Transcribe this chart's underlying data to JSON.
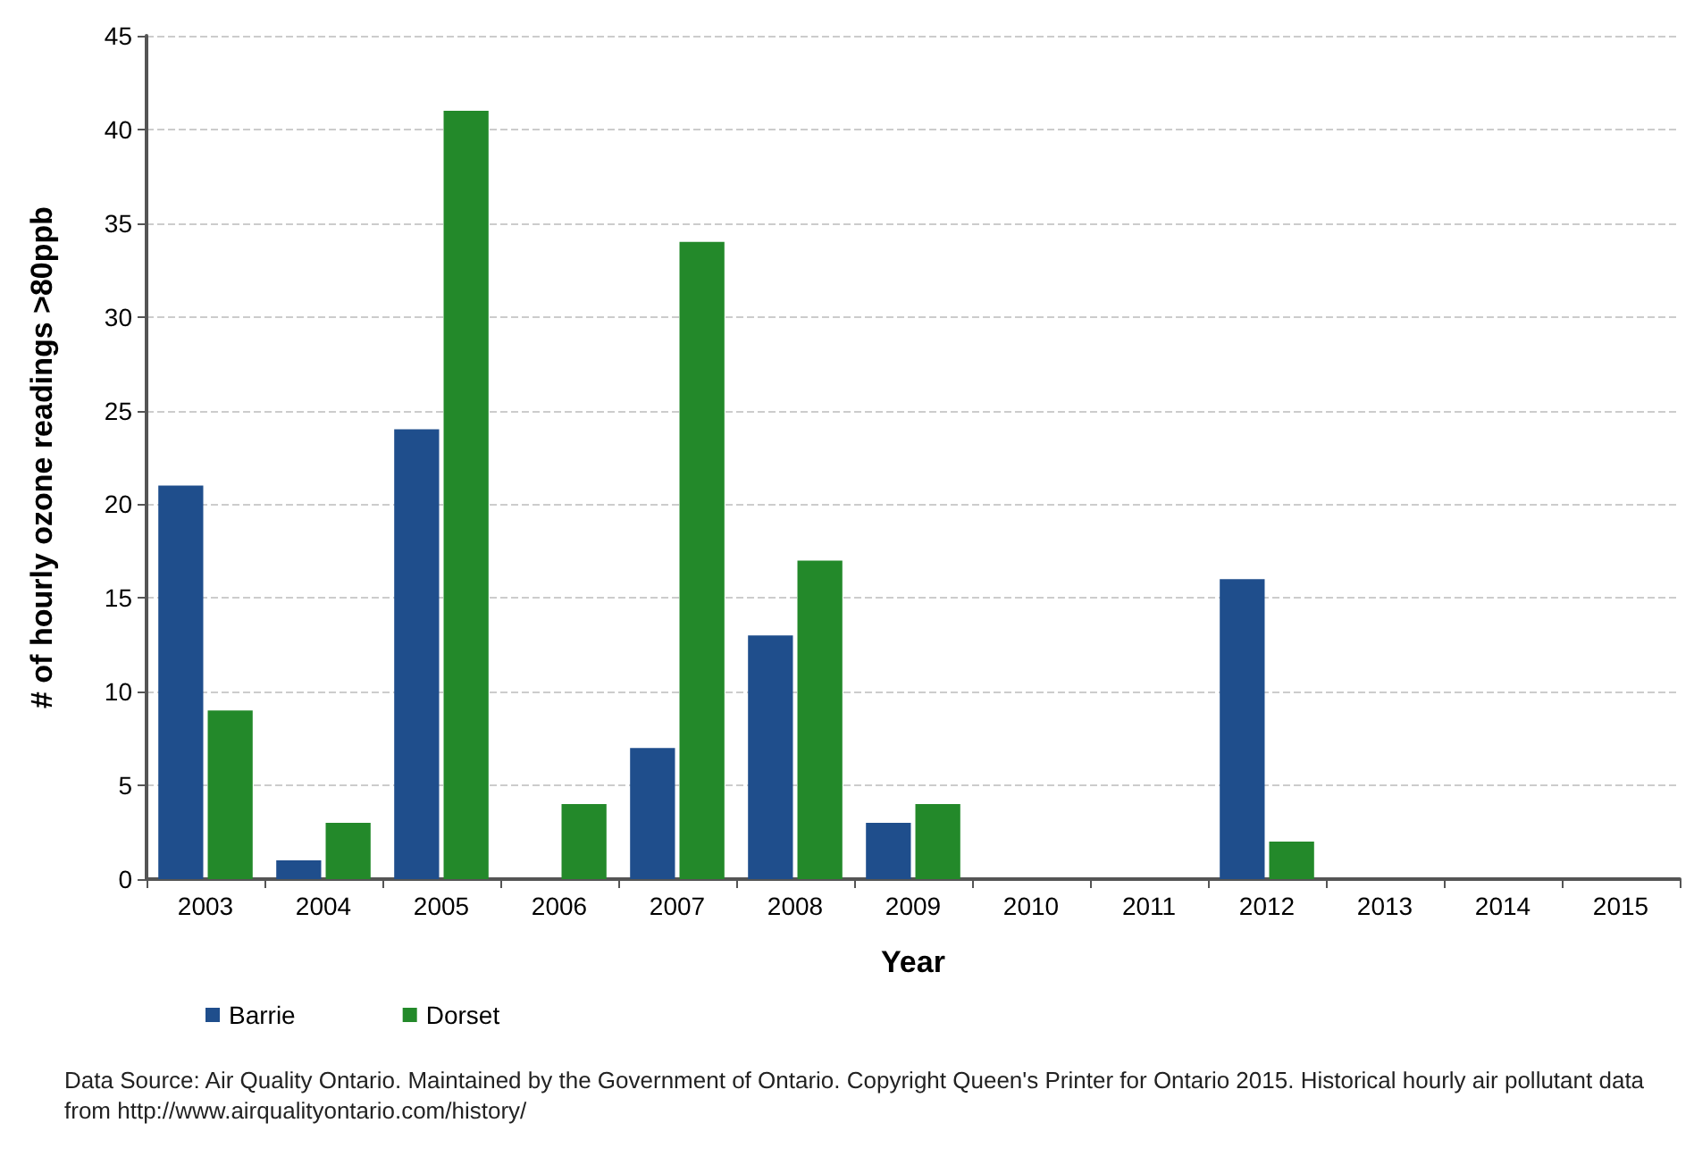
{
  "chart_data": {
    "type": "bar",
    "xlabel": "Year",
    "ylabel": "# of hourly ozone readings >80ppb",
    "categories": [
      "2003",
      "2004",
      "2005",
      "2006",
      "2007",
      "2008",
      "2009",
      "2010",
      "2011",
      "2012",
      "2013",
      "2014",
      "2015"
    ],
    "series": [
      {
        "name": "Barrie",
        "color": "#1f4e8c",
        "values": [
          21,
          1,
          24,
          0,
          7,
          13,
          3,
          0,
          0,
          16,
          0,
          0,
          0
        ]
      },
      {
        "name": "Dorset",
        "color": "#23892a",
        "values": [
          9,
          3,
          41,
          4,
          34,
          17,
          4,
          0,
          0,
          2,
          0,
          0,
          0
        ]
      }
    ],
    "ylim": [
      0,
      45
    ],
    "yticks": [
      0,
      5,
      10,
      15,
      20,
      25,
      30,
      35,
      40,
      45
    ],
    "grid": "y",
    "legend": "bottom left",
    "annotations": [
      "Data Source: Air Quality Ontario. Maintained by the Government of Ontario. Copyright Queen's Printer for Ontario 2015. Historical hourly air pollutant data from http://www.airqualityontario.com/history/"
    ]
  }
}
